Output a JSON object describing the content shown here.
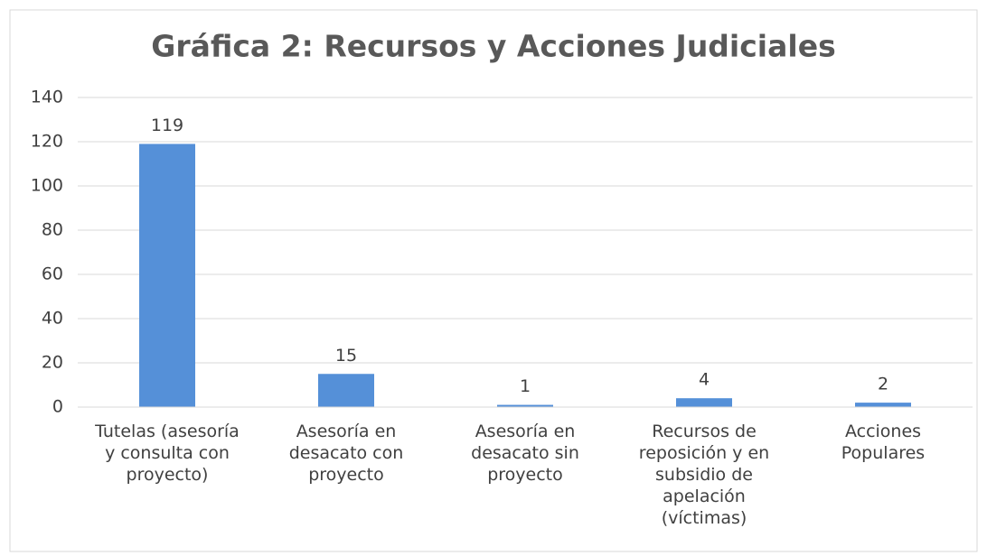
{
  "chart_data": {
    "type": "bar",
    "title": "Gráfica 2: Recursos y Acciones Judiciales",
    "categories": [
      "Tutelas (asesoría y consulta con proyecto)",
      "Asesoría en desacato con proyecto",
      "Asesoría en desacato sin proyecto",
      "Recursos de reposición y en subsidio de apelación (víctimas)",
      "Acciones Populares"
    ],
    "values": [
      119,
      15,
      1,
      4,
      2
    ],
    "color": "#5590d8",
    "ylim": [
      0,
      140
    ],
    "yticks": [
      0,
      20,
      40,
      60,
      80,
      100,
      120,
      140
    ],
    "grid": true
  }
}
